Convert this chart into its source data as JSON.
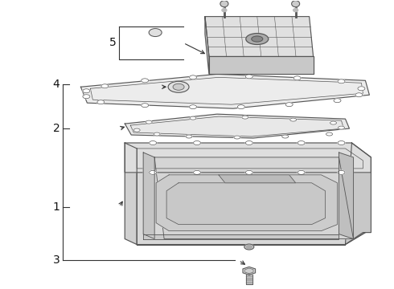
{
  "bg_color": "#ffffff",
  "line_color": "#555555",
  "text_color": "#111111",
  "fig_width": 4.9,
  "fig_height": 3.6,
  "dpi": 100
}
